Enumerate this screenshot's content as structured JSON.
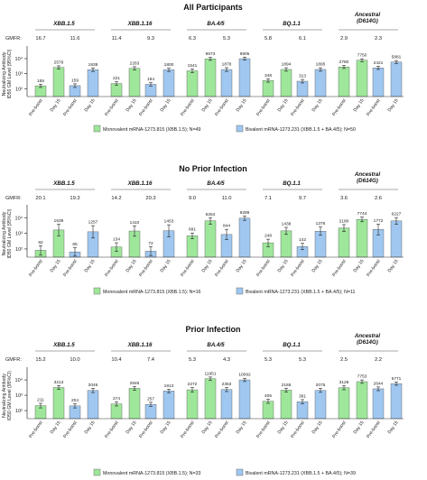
{
  "colors": {
    "mono": "#9ee79a",
    "bi": "#9fc7f0",
    "stroke": "#222222",
    "bracket": "#555555"
  },
  "gmfr_label": "GMFR:",
  "y_ticks": [
    "10⁴",
    "10³",
    "10²"
  ],
  "legend": {
    "mono_label": "Monovalent mRNA-1273.815 (XBB.1.5)",
    "bi_label": "Bivalent mRNA-1273.231 (XBB.1.5 + BA.4/5)"
  },
  "chart_data": [
    {
      "type": "bar",
      "title": "All Participants",
      "ylabel": "Neutralizing Antibody\nID50 GM Level (95%CI)",
      "yscale": "log",
      "ylim": [
        30,
        30000
      ],
      "legend": {
        "mono_n": "; N=49",
        "bi_n": "; N=50"
      },
      "groups": [
        {
          "label": "XBB.1.5",
          "gmfr": [
            "16.7",
            "11.6"
          ],
          "bars": [
            {
              "series": "mono",
              "x": "Pre-boost",
              "value": 155,
              "ci": [
                120,
                200
              ]
            },
            {
              "series": "mono",
              "x": "Day 15",
              "value": 2579,
              "ci": [
                2000,
                3300
              ]
            },
            {
              "series": "bi",
              "x": "Pre-boost",
              "value": 159,
              "ci": [
                120,
                210
              ]
            },
            {
              "series": "bi",
              "x": "Day 15",
              "value": 1838,
              "ci": [
                1400,
                2400
              ]
            }
          ]
        },
        {
          "label": "XBB.1.16",
          "gmfr": [
            "11.4",
            "9.3"
          ],
          "bars": [
            {
              "series": "mono",
              "x": "Pre-boost",
              "value": 221,
              "ci": [
                170,
                290
              ]
            },
            {
              "series": "mono",
              "x": "Day 15",
              "value": 2263,
              "ci": [
                1750,
                2900
              ]
            },
            {
              "series": "bi",
              "x": "Pre-boost",
              "value": 194,
              "ci": [
                150,
                250
              ]
            },
            {
              "series": "bi",
              "x": "Day 15",
              "value": 1800,
              "ci": [
                1400,
                2300
              ]
            }
          ]
        },
        {
          "label": "BA.4/5",
          "gmfr": [
            "6.3",
            "5.3"
          ],
          "bars": [
            {
              "series": "mono",
              "x": "Pre-boost",
              "value": 1541,
              "ci": [
                1150,
                2050
              ]
            },
            {
              "series": "mono",
              "x": "Day 15",
              "value": 9673,
              "ci": [
                7600,
                12300
              ]
            },
            {
              "series": "bi",
              "x": "Pre-boost",
              "value": 1878,
              "ci": [
                1400,
                2500
              ]
            },
            {
              "series": "bi",
              "x": "Day 15",
              "value": 9905,
              "ci": [
                7800,
                12600
              ]
            }
          ]
        },
        {
          "label": "BQ.1.1",
          "gmfr": [
            "5.8",
            "6.1"
          ],
          "bars": [
            {
              "series": "mono",
              "x": "Pre-boost",
              "value": 348,
              "ci": [
                270,
                450
              ]
            },
            {
              "series": "mono",
              "x": "Day 15",
              "value": 1894,
              "ci": [
                1450,
                2450
              ]
            },
            {
              "series": "bi",
              "x": "Pre-boost",
              "value": 313,
              "ci": [
                240,
                410
              ]
            },
            {
              "series": "bi",
              "x": "Day 15",
              "value": 1895,
              "ci": [
                1450,
                2450
              ]
            }
          ]
        },
        {
          "label": "Ancestral\n(D614G)",
          "gmfr": [
            "2.9",
            "2.3"
          ],
          "bars": [
            {
              "series": "mono",
              "x": "Pre-boost",
              "value": 2780,
              "ci": [
                2200,
                3500
              ]
            },
            {
              "series": "mono",
              "x": "Day 15",
              "value": 7750,
              "ci": [
                6200,
                9700
              ]
            },
            {
              "series": "bi",
              "x": "Pre-boost",
              "value": 2421,
              "ci": [
                1900,
                3100
              ]
            },
            {
              "series": "bi",
              "x": "Day 15",
              "value": 5881,
              "ci": [
                4700,
                7400
              ]
            }
          ]
        }
      ]
    },
    {
      "type": "bar",
      "title": "No Prior Infection",
      "ylabel": "Neutralizing Antibody\nID50 GM Level (95%CI)",
      "yscale": "log",
      "ylim": [
        30,
        30000
      ],
      "legend": {
        "mono_n": "; N=16",
        "bi_n": "; N=11"
      },
      "groups": [
        {
          "label": "XBB.1.5",
          "gmfr": [
            "20.1",
            "19.3"
          ],
          "bars": [
            {
              "series": "mono",
              "x": "Pre-boost",
              "value": 82,
              "ci": [
                40,
                160
              ]
            },
            {
              "series": "mono",
              "x": "Day 15",
              "value": 1639,
              "ci": [
                700,
                3800
              ]
            },
            {
              "series": "bi",
              "x": "Pre-boost",
              "value": 65,
              "ci": [
                35,
                120
              ]
            },
            {
              "series": "bi",
              "x": "Day 15",
              "value": 1257,
              "ci": [
                500,
                3100
              ]
            }
          ]
        },
        {
          "label": "XBB.1.16",
          "gmfr": [
            "14.2",
            "20.3"
          ],
          "bars": [
            {
              "series": "mono",
              "x": "Pre-boost",
              "value": 134,
              "ci": [
                70,
                250
              ]
            },
            {
              "series": "mono",
              "x": "Day 15",
              "value": 1410,
              "ci": [
                650,
                3000
              ]
            },
            {
              "series": "bi",
              "x": "Pre-boost",
              "value": 72,
              "ci": [
                38,
                140
              ]
            },
            {
              "series": "bi",
              "x": "Day 15",
              "value": 1453,
              "ci": [
                600,
                3500
              ]
            }
          ]
        },
        {
          "label": "BA.4/5",
          "gmfr": [
            "9.0",
            "11.0"
          ],
          "bars": [
            {
              "series": "mono",
              "x": "Pre-boost",
              "value": 691,
              "ci": [
                450,
                1050
              ]
            },
            {
              "series": "mono",
              "x": "Day 15",
              "value": 6254,
              "ci": [
                3800,
                10000
              ]
            },
            {
              "series": "bi",
              "x": "Pre-boost",
              "value": 844,
              "ci": [
                400,
                1800
              ]
            },
            {
              "series": "bi",
              "x": "Day 15",
              "value": 9289,
              "ci": [
                6800,
                12500
              ]
            }
          ]
        },
        {
          "label": "BQ.1.1",
          "gmfr": [
            "7.1",
            "9.7"
          ],
          "bars": [
            {
              "series": "mono",
              "x": "Pre-boost",
              "value": 248,
              "ci": [
                140,
                420
              ]
            },
            {
              "series": "mono",
              "x": "Day 15",
              "value": 1438,
              "ci": [
                850,
                2400
              ]
            },
            {
              "series": "bi",
              "x": "Pre-boost",
              "value": 142,
              "ci": [
                90,
                230
              ]
            },
            {
              "series": "bi",
              "x": "Day 15",
              "value": 1376,
              "ci": [
                750,
                2500
              ]
            }
          ]
        },
        {
          "label": "Ancestral\n(D614G)",
          "gmfr": [
            "3.6",
            "2.6"
          ],
          "bars": [
            {
              "series": "mono",
              "x": "Pre-boost",
              "value": 2180,
              "ci": [
                1300,
                3600
              ]
            },
            {
              "series": "mono",
              "x": "Day 15",
              "value": 7744,
              "ci": [
                5500,
                11000
              ]
            },
            {
              "series": "bi",
              "x": "Pre-boost",
              "value": 1772,
              "ci": [
                800,
                3900
              ]
            },
            {
              "series": "bi",
              "x": "Day 15",
              "value": 6227,
              "ci": [
                3800,
                10200
              ]
            }
          ]
        }
      ]
    },
    {
      "type": "bar",
      "title": "Prior Infection",
      "ylabel": "Neutralizing Antibody\nID50 GM Level (95%CI)",
      "yscale": "log",
      "ylim": [
        30,
        30000
      ],
      "legend": {
        "mono_n": "; N=33",
        "bi_n": "; N=39"
      },
      "groups": [
        {
          "label": "XBB.1.5",
          "gmfr": [
            "15.2",
            "10.0"
          ],
          "bars": [
            {
              "series": "mono",
              "x": "Pre-boost",
              "value": 211,
              "ci": [
                150,
                300
              ]
            },
            {
              "series": "mono",
              "x": "Day 15",
              "value": 3213,
              "ci": [
                2400,
                4300
              ]
            },
            {
              "series": "bi",
              "x": "Pre-boost",
              "value": 204,
              "ci": [
                150,
                280
              ]
            },
            {
              "series": "bi",
              "x": "Day 15",
              "value": 2046,
              "ci": [
                1500,
                2800
              ]
            }
          ]
        },
        {
          "label": "XBB.1.16",
          "gmfr": [
            "10.4",
            "7.4"
          ],
          "bars": [
            {
              "series": "mono",
              "x": "Pre-boost",
              "value": 274,
              "ci": [
                200,
                380
              ]
            },
            {
              "series": "mono",
              "x": "Day 15",
              "value": 2846,
              "ci": [
                2100,
                3800
              ]
            },
            {
              "series": "bi",
              "x": "Pre-boost",
              "value": 257,
              "ci": [
                190,
                350
              ]
            },
            {
              "series": "bi",
              "x": "Day 15",
              "value": 1913,
              "ci": [
                1450,
                2500
              ]
            }
          ]
        },
        {
          "label": "BA.4/5",
          "gmfr": [
            "5.3",
            "4.3"
          ],
          "bars": [
            {
              "series": "mono",
              "x": "Pre-boost",
              "value": 2272,
              "ci": [
                1600,
                3200
              ]
            },
            {
              "series": "mono",
              "x": "Day 15",
              "value": 11951,
              "ci": [
                9200,
                15500
              ]
            },
            {
              "series": "bi",
              "x": "Pre-boost",
              "value": 2353,
              "ci": [
                1750,
                3150
              ]
            },
            {
              "series": "bi",
              "x": "Day 15",
              "value": 10092,
              "ci": [
                7900,
                12900
              ]
            }
          ]
        },
        {
          "label": "BQ.1.1",
          "gmfr": [
            "5.3",
            "5.3"
          ],
          "bars": [
            {
              "series": "mono",
              "x": "Pre-boost",
              "value": 405,
              "ci": [
                300,
                550
              ]
            },
            {
              "series": "mono",
              "x": "Day 15",
              "value": 2165,
              "ci": [
                1600,
                2900
              ]
            },
            {
              "series": "bi",
              "x": "Pre-boost",
              "value": 381,
              "ci": [
                280,
                520
              ]
            },
            {
              "series": "bi",
              "x": "Day 15",
              "value": 2075,
              "ci": [
                1550,
                2800
              ]
            }
          ]
        },
        {
          "label": "Ancestral\n(D614G)",
          "gmfr": [
            "2.5",
            "2.2"
          ],
          "bars": [
            {
              "series": "mono",
              "x": "Pre-boost",
              "value": 3128,
              "ci": [
                2300,
                4200
              ]
            },
            {
              "series": "mono",
              "x": "Day 15",
              "value": 7753,
              "ci": [
                6000,
                10000
              ]
            },
            {
              "series": "bi",
              "x": "Pre-boost",
              "value": 2644,
              "ci": [
                2000,
                3500
              ]
            },
            {
              "series": "bi",
              "x": "Day 15",
              "value": 5771,
              "ci": [
                4500,
                7400
              ]
            }
          ]
        }
      ]
    }
  ]
}
